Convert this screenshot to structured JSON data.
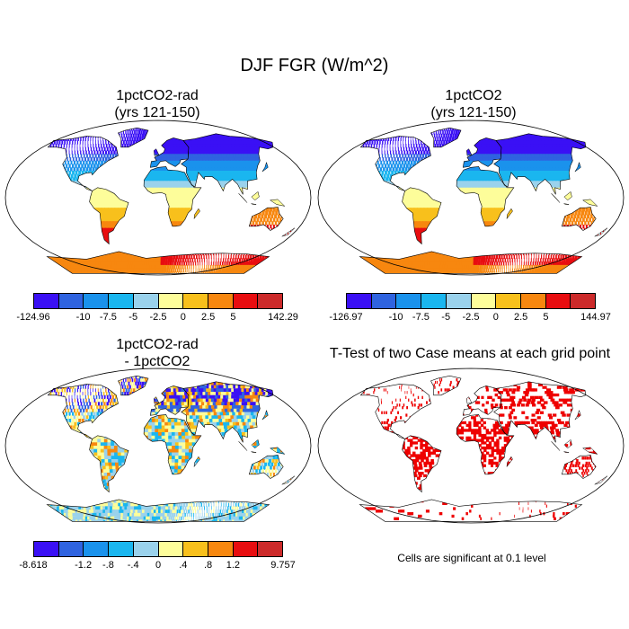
{
  "figure": {
    "title": "DJF FGR (W/m^2)"
  },
  "colors": {
    "palette": [
      "#3a10f5",
      "#2f63e0",
      "#1a92ec",
      "#1ab6ef",
      "#9ad2ec",
      "#fdfd9a",
      "#f8c01c",
      "#f7870f",
      "#e80d10",
      "#cc2a2a"
    ],
    "ocean": "#ffffff",
    "land_outline": "#000000",
    "significant": "#ee0000"
  },
  "panels": [
    {
      "id": "p1",
      "title_line1": "1pctCO2-rad",
      "title_line2": "(yrs 121-150)",
      "field": "absolute",
      "colorbar": {
        "labels": [
          "-124.96",
          "-10",
          "-7.5",
          "-5",
          "-2.5",
          "0",
          "2.5",
          "5",
          "142.29"
        ]
      }
    },
    {
      "id": "p2",
      "title_line1": "1pctCO2",
      "title_line2": "(yrs 121-150)",
      "field": "absolute",
      "colorbar": {
        "labels": [
          "-126.97",
          "-10",
          "-7.5",
          "-5",
          "-2.5",
          "0",
          "2.5",
          "5",
          "144.97"
        ]
      }
    },
    {
      "id": "p3",
      "title_line1": "1pctCO2-rad",
      "title_line2": "- 1pctCO2",
      "field": "difference",
      "colorbar": {
        "labels": [
          "-8.618",
          "-1.2",
          "-.8",
          "-.4",
          "0",
          ".4",
          ".8",
          "1.2",
          "9.757"
        ]
      }
    },
    {
      "id": "p4",
      "title_line1": "T-Test of two Case means at each grid point",
      "title_line2": "",
      "field": "ttest",
      "note": "Cells are significant at 0.1 level"
    }
  ]
}
